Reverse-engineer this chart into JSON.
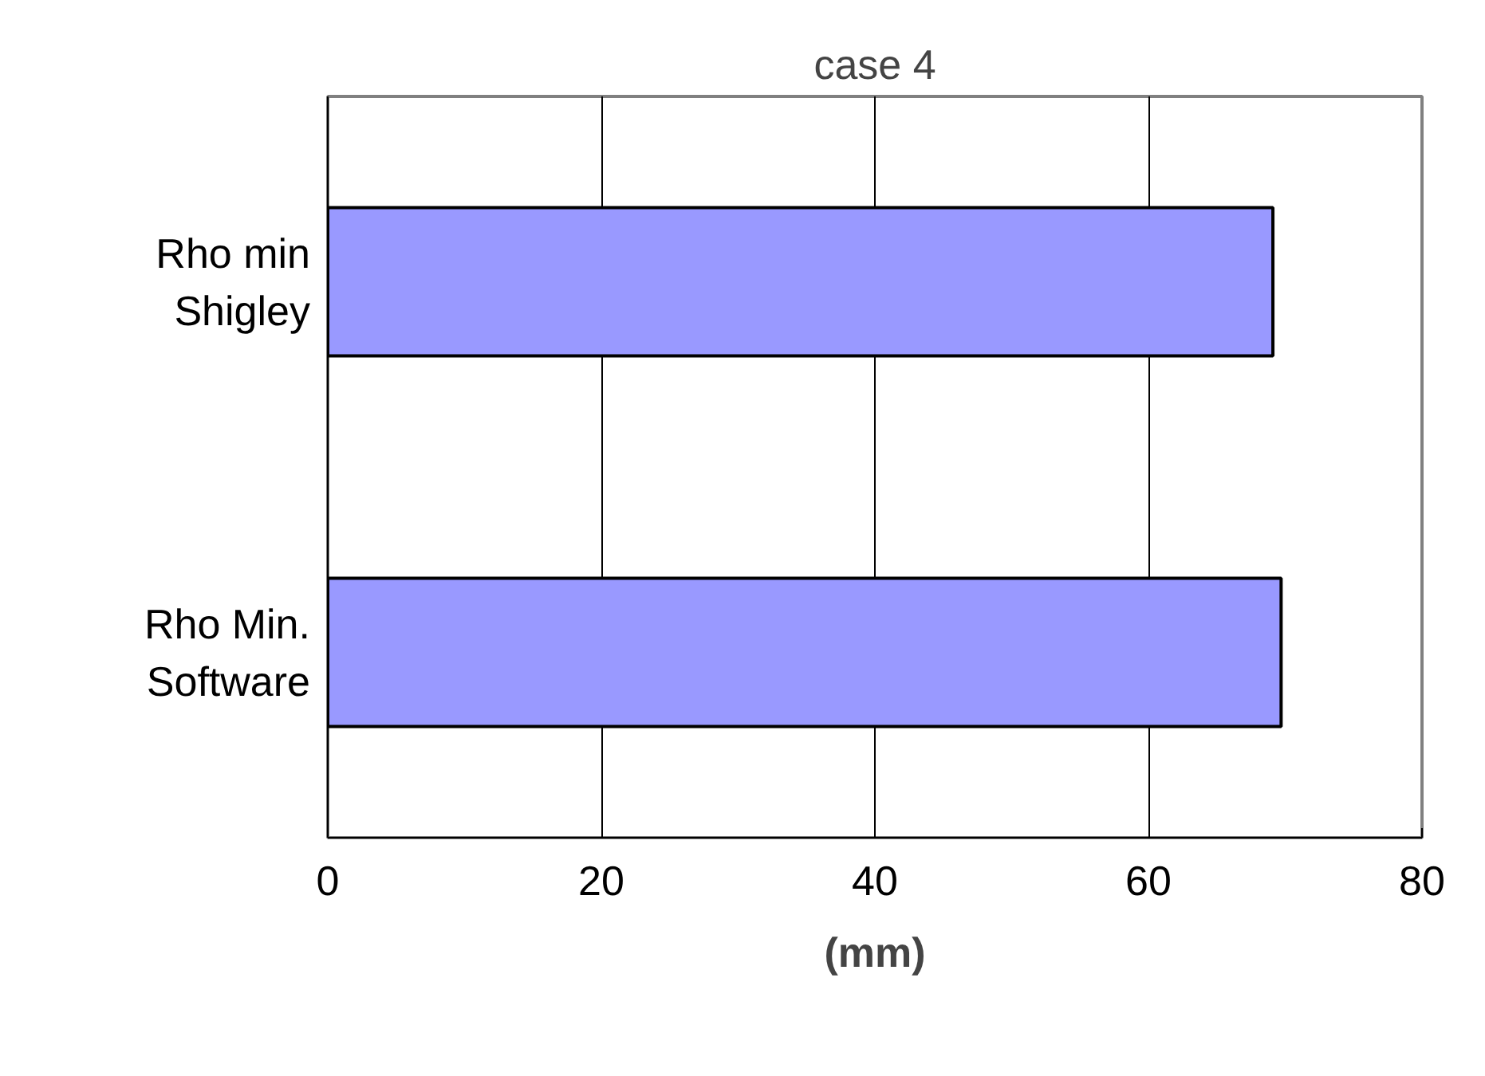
{
  "chart_data": {
    "type": "bar",
    "orientation": "horizontal",
    "title": "case 4",
    "xlabel": "(mm)",
    "categories": [
      "Rho min Shigley",
      "Rho Min. Software"
    ],
    "values": [
      69.1,
      69.7
    ],
    "color": "#9999ff",
    "xlim": [
      0,
      80
    ],
    "xticks": [
      0,
      20,
      40,
      60,
      80
    ],
    "grid": "x"
  }
}
